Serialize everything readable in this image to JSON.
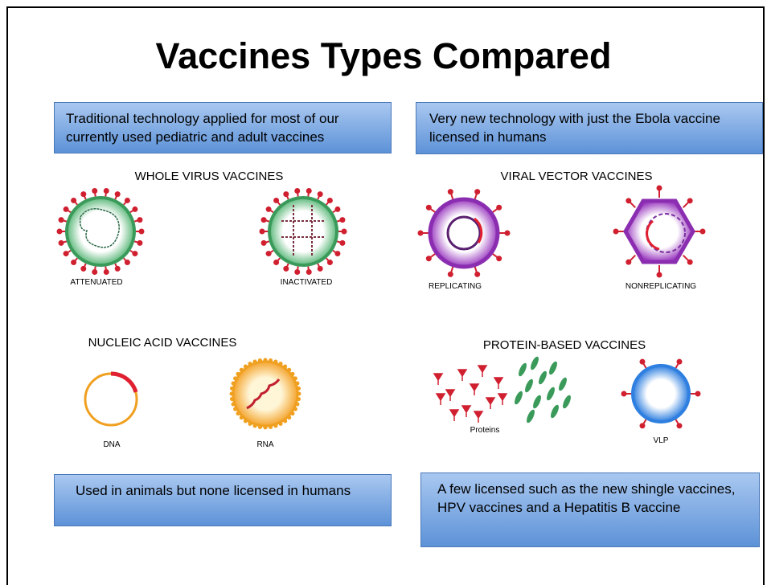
{
  "title": "Vaccines Types Compared",
  "notes": [
    "Traditional technology applied for most of our currently used pediatric and adult vaccines",
    "Very new technology with just the Ebola vaccine licensed in humans",
    "Used in animals but none licensed in humans",
    "A few licensed such as the new shingle vaccines, HPV vaccines and a Hepatitis B vaccine"
  ],
  "groups": [
    {
      "label": "WHOLE VIRUS VACCINES",
      "items": [
        "ATTENUATED",
        "INACTIVATED"
      ]
    },
    {
      "label": "VIRAL VECTOR VACCINES",
      "items": [
        "REPLICATING",
        "NONREPLICATING"
      ]
    },
    {
      "label": "NUCLEIC ACID VACCINES",
      "items": [
        "DNA",
        "RNA"
      ]
    },
    {
      "label": "PROTEIN-BASED VACCINES",
      "items": [
        "Proteins",
        "VLP"
      ]
    }
  ]
}
